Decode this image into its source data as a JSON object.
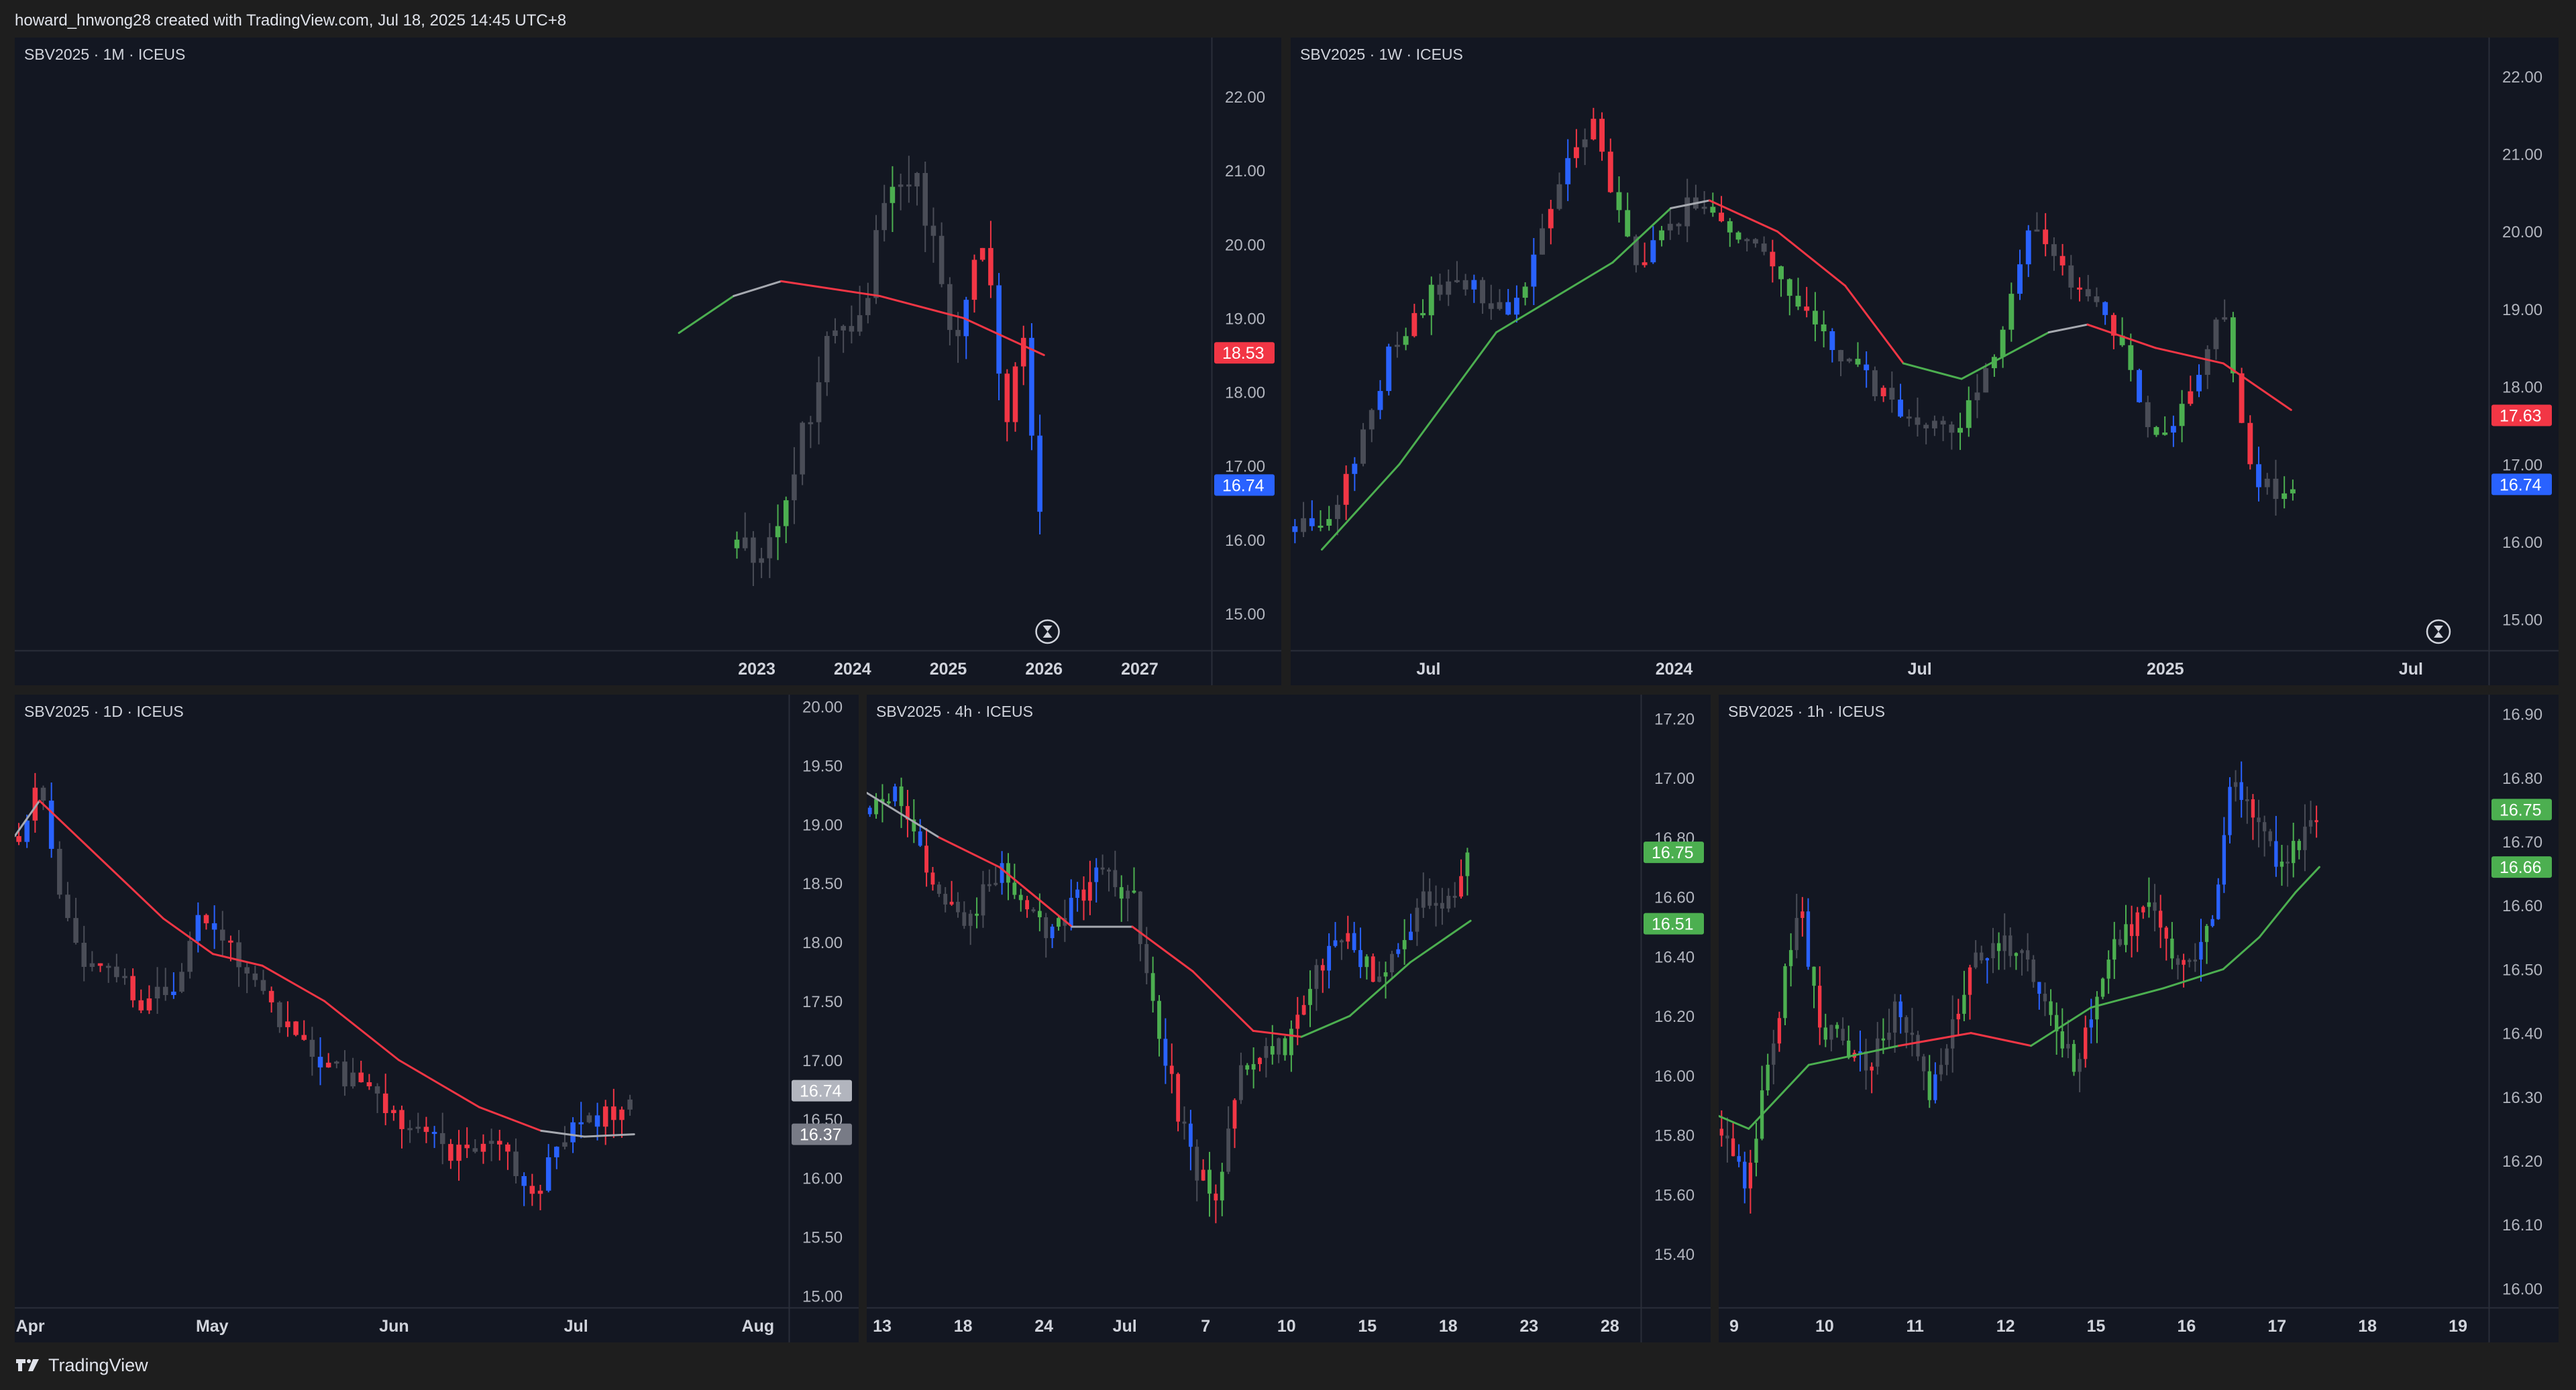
{
  "header": {
    "text": "howard_hnwong28 created with TradingView.com, Jul 18, 2025 14:45 UTC+8"
  },
  "footer": {
    "brand": "TradingView",
    "logo_icon": "tradingview-logo-icon"
  },
  "colors": {
    "background": "#131722",
    "frame": "#1e1e1e",
    "candle_up": "#4caf50",
    "candle_down": "#f23645",
    "candle_blue": "#2962ff",
    "candle_neutral": "#4a4d57",
    "ma_up": "#4caf50",
    "ma_down": "#f23645",
    "ma_flat": "#a6a9b0",
    "axis_text": "#b2b5be"
  },
  "chart_data": [
    {
      "type": "candlestick",
      "pane_title": "SBV2025 · 1M · ICEUS",
      "symbol": "SBV2025",
      "interval": "1M",
      "exchange": "ICEUS",
      "ylim": [
        14.5,
        22.8
      ],
      "y_ticks": [
        "22.00",
        "21.00",
        "20.00",
        "19.00",
        "18.00",
        "17.00",
        "16.00",
        "15.00"
      ],
      "x_ticks": [
        "2023",
        "2024",
        "2025",
        "2026",
        "2027"
      ],
      "price_labels": [
        {
          "value": 18.53,
          "text": "18.53",
          "color": "#f23645"
        },
        {
          "value": 16.74,
          "text": "16.74",
          "color": "#2962ff"
        }
      ],
      "moving_average": [
        {
          "x": 0,
          "y": 18.8,
          "trend": "up"
        },
        {
          "x": 0.15,
          "y": 19.3,
          "trend": "up"
        },
        {
          "x": 0.28,
          "y": 19.5,
          "trend": "flat"
        },
        {
          "x": 0.55,
          "y": 19.3,
          "trend": "down"
        },
        {
          "x": 0.78,
          "y": 19.0,
          "trend": "down"
        },
        {
          "x": 1,
          "y": 18.5,
          "trend": "down"
        }
      ],
      "ma_span": [
        0.555,
        0.86
      ],
      "candles_seed": 11,
      "candles_span": [
        0.6,
        0.86
      ],
      "candles_count": 38,
      "candles_path": [
        [
          0,
          16.0
        ],
        [
          0.08,
          15.8
        ],
        [
          0.18,
          16.8
        ],
        [
          0.3,
          18.7
        ],
        [
          0.42,
          19.2
        ],
        [
          0.5,
          21.0
        ],
        [
          0.6,
          20.8
        ],
        [
          0.72,
          18.6
        ],
        [
          0.82,
          20.3
        ],
        [
          0.88,
          17.3
        ],
        [
          0.94,
          19.0
        ],
        [
          1.0,
          16.3
        ]
      ],
      "candles_vol": 0.5,
      "candles_colors": "mixed-red-end",
      "hourglass_icon": "hourglass-icon"
    },
    {
      "type": "candlestick",
      "pane_title": "SBV2025 · 1W · ICEUS",
      "symbol": "SBV2025",
      "interval": "1W",
      "exchange": "ICEUS",
      "ylim": [
        14.6,
        22.5
      ],
      "y_ticks": [
        "22.00",
        "21.00",
        "20.00",
        "19.00",
        "18.00",
        "17.00",
        "16.00",
        "15.00"
      ],
      "x_ticks": [
        "Jul",
        "2024",
        "Jul",
        "2025",
        "Jul"
      ],
      "price_labels": [
        {
          "value": 17.63,
          "text": "17.63",
          "color": "#f23645"
        },
        {
          "value": 16.74,
          "text": "16.74",
          "color": "#2962ff"
        }
      ],
      "moving_average": [
        {
          "x": 0,
          "y": 15.9,
          "trend": "up"
        },
        {
          "x": 0.08,
          "y": 17.0,
          "trend": "up"
        },
        {
          "x": 0.18,
          "y": 18.7,
          "trend": "up"
        },
        {
          "x": 0.3,
          "y": 19.6,
          "trend": "up"
        },
        {
          "x": 0.36,
          "y": 20.3,
          "trend": "up"
        },
        {
          "x": 0.4,
          "y": 20.4,
          "trend": "flat"
        },
        {
          "x": 0.47,
          "y": 20.0,
          "trend": "down"
        },
        {
          "x": 0.54,
          "y": 19.3,
          "trend": "down"
        },
        {
          "x": 0.6,
          "y": 18.3,
          "trend": "down"
        },
        {
          "x": 0.66,
          "y": 18.1,
          "trend": "up"
        },
        {
          "x": 0.75,
          "y": 18.7,
          "trend": "up"
        },
        {
          "x": 0.79,
          "y": 18.8,
          "trend": "flat"
        },
        {
          "x": 0.86,
          "y": 18.5,
          "trend": "down"
        },
        {
          "x": 0.93,
          "y": 18.3,
          "trend": "down"
        },
        {
          "x": 1,
          "y": 17.7,
          "trend": "down"
        }
      ],
      "ma_span": [
        0.026,
        0.835
      ],
      "candles_seed": 23,
      "candles_span": [
        0.0,
        0.84
      ],
      "candles_count": 118,
      "candles_path": [
        [
          0,
          16.2
        ],
        [
          0.04,
          16.4
        ],
        [
          0.1,
          18.6
        ],
        [
          0.15,
          19.4
        ],
        [
          0.22,
          19.0
        ],
        [
          0.27,
          20.8
        ],
        [
          0.3,
          21.4
        ],
        [
          0.34,
          19.5
        ],
        [
          0.4,
          20.4
        ],
        [
          0.47,
          19.8
        ],
        [
          0.52,
          18.7
        ],
        [
          0.6,
          17.8
        ],
        [
          0.66,
          17.4
        ],
        [
          0.7,
          18.4
        ],
        [
          0.74,
          20.2
        ],
        [
          0.78,
          19.3
        ],
        [
          0.82,
          18.8
        ],
        [
          0.86,
          17.2
        ],
        [
          0.9,
          18.0
        ],
        [
          0.93,
          19.0
        ],
        [
          0.96,
          16.8
        ],
        [
          1.0,
          16.6
        ]
      ],
      "candles_vol": 0.32,
      "candles_colors": "mixed",
      "hourglass_icon": "hourglass-icon"
    },
    {
      "type": "candlestick",
      "pane_title": "SBV2025 · 1D · ICEUS",
      "symbol": "SBV2025",
      "interval": "1D",
      "exchange": "ICEUS",
      "ylim": [
        14.9,
        20.1
      ],
      "y_ticks": [
        "20.00",
        "19.50",
        "19.00",
        "18.50",
        "18.00",
        "17.50",
        "17.00",
        "16.50",
        "16.00",
        "15.50",
        "15.00"
      ],
      "x_ticks": [
        "Apr",
        "May",
        "Jun",
        "Jul",
        "Aug"
      ],
      "price_labels": [
        {
          "value": 16.74,
          "text": "16.74",
          "color": "#b2b5be"
        },
        {
          "value": 16.37,
          "text": "16.37",
          "color": "#787b86"
        }
      ],
      "moving_average": [
        {
          "x": 0,
          "y": 18.9,
          "trend": "up"
        },
        {
          "x": 0.04,
          "y": 19.2,
          "trend": "flat"
        },
        {
          "x": 0.12,
          "y": 18.8,
          "trend": "down"
        },
        {
          "x": 0.24,
          "y": 18.2,
          "trend": "down"
        },
        {
          "x": 0.32,
          "y": 17.9,
          "trend": "down"
        },
        {
          "x": 0.4,
          "y": 17.8,
          "trend": "down"
        },
        {
          "x": 0.5,
          "y": 17.5,
          "trend": "down"
        },
        {
          "x": 0.62,
          "y": 17.0,
          "trend": "down"
        },
        {
          "x": 0.75,
          "y": 16.6,
          "trend": "down"
        },
        {
          "x": 0.85,
          "y": 16.4,
          "trend": "down"
        },
        {
          "x": 0.92,
          "y": 16.35,
          "trend": "flat"
        },
        {
          "x": 1,
          "y": 16.37,
          "trend": "flat"
        }
      ],
      "ma_span": [
        0.0,
        0.8
      ],
      "candles_seed": 37,
      "candles_span": [
        0.0,
        0.8
      ],
      "candles_count": 76,
      "candles_path": [
        [
          0,
          18.9
        ],
        [
          0.03,
          19.4
        ],
        [
          0.07,
          18.4
        ],
        [
          0.1,
          17.9
        ],
        [
          0.15,
          17.8
        ],
        [
          0.2,
          17.5
        ],
        [
          0.25,
          17.6
        ],
        [
          0.3,
          18.3
        ],
        [
          0.35,
          17.9
        ],
        [
          0.45,
          17.2
        ],
        [
          0.55,
          16.8
        ],
        [
          0.65,
          16.4
        ],
        [
          0.72,
          16.2
        ],
        [
          0.78,
          16.4
        ],
        [
          0.84,
          15.8
        ],
        [
          0.88,
          16.3
        ],
        [
          0.95,
          16.5
        ],
        [
          1.0,
          16.6
        ]
      ],
      "candles_vol": 0.22,
      "candles_colors": "mostly-red",
      "hourglass_icon": ""
    },
    {
      "type": "candlestick",
      "pane_title": "SBV2025 · 4h · ICEUS",
      "symbol": "SBV2025",
      "interval": "4h",
      "exchange": "ICEUS",
      "ylim": [
        15.22,
        17.28
      ],
      "y_ticks": [
        "17.20",
        "17.00",
        "16.80",
        "16.60",
        "16.40",
        "16.20",
        "16.00",
        "15.80",
        "15.60",
        "15.40"
      ],
      "x_ticks": [
        "13",
        "18",
        "24",
        "Jul",
        "7",
        "10",
        "15",
        "18",
        "23",
        "28"
      ],
      "price_labels": [
        {
          "value": 16.75,
          "text": "16.75",
          "color": "#4caf50"
        },
        {
          "value": 16.51,
          "text": "16.51",
          "color": "#4caf50"
        }
      ],
      "moving_average": [
        {
          "x": 0,
          "y": 16.95,
          "trend": "down"
        },
        {
          "x": 0.12,
          "y": 16.8,
          "trend": "flat"
        },
        {
          "x": 0.22,
          "y": 16.7,
          "trend": "down"
        },
        {
          "x": 0.34,
          "y": 16.5,
          "trend": "down"
        },
        {
          "x": 0.44,
          "y": 16.5,
          "trend": "flat"
        },
        {
          "x": 0.54,
          "y": 16.35,
          "trend": "down"
        },
        {
          "x": 0.64,
          "y": 16.15,
          "trend": "down"
        },
        {
          "x": 0.72,
          "y": 16.13,
          "trend": "down"
        },
        {
          "x": 0.8,
          "y": 16.2,
          "trend": "up"
        },
        {
          "x": 0.9,
          "y": 16.38,
          "trend": "up"
        },
        {
          "x": 1,
          "y": 16.52,
          "trend": "up"
        }
      ],
      "ma_span": [
        0.0,
        0.78
      ],
      "candles_seed": 53,
      "candles_span": [
        0.0,
        0.78
      ],
      "candles_count": 96,
      "candles_path": [
        [
          0,
          16.9
        ],
        [
          0.05,
          16.95
        ],
        [
          0.1,
          16.7
        ],
        [
          0.16,
          16.5
        ],
        [
          0.22,
          16.7
        ],
        [
          0.3,
          16.45
        ],
        [
          0.38,
          16.7
        ],
        [
          0.44,
          16.6
        ],
        [
          0.5,
          16.0
        ],
        [
          0.54,
          15.7
        ],
        [
          0.58,
          15.6
        ],
        [
          0.62,
          16.0
        ],
        [
          0.7,
          16.1
        ],
        [
          0.78,
          16.5
        ],
        [
          0.86,
          16.3
        ],
        [
          0.92,
          16.6
        ],
        [
          0.96,
          16.55
        ],
        [
          1.0,
          16.75
        ]
      ],
      "candles_vol": 0.1,
      "candles_colors": "mixed",
      "hourglass_icon": ""
    },
    {
      "type": "candlestick",
      "pane_title": "SBV2025 · 1h · ICEUS",
      "symbol": "SBV2025",
      "interval": "1h",
      "exchange": "ICEUS",
      "ylim": [
        15.97,
        16.93
      ],
      "y_ticks": [
        "16.90",
        "16.80",
        "16.70",
        "16.60",
        "16.50",
        "16.40",
        "16.30",
        "16.20",
        "16.10",
        "16.00"
      ],
      "x_ticks": [
        "9",
        "10",
        "11",
        "12",
        "15",
        "16",
        "17",
        "18",
        "19"
      ],
      "price_labels": [
        {
          "value": 16.75,
          "text": "16.75",
          "color": "#4caf50"
        },
        {
          "value": 16.66,
          "text": "16.66",
          "color": "#4caf50"
        }
      ],
      "moving_average": [
        {
          "x": 0,
          "y": 16.27,
          "trend": "down"
        },
        {
          "x": 0.05,
          "y": 16.25,
          "trend": "up"
        },
        {
          "x": 0.15,
          "y": 16.35,
          "trend": "up"
        },
        {
          "x": 0.3,
          "y": 16.38,
          "trend": "up"
        },
        {
          "x": 0.42,
          "y": 16.4,
          "trend": "red"
        },
        {
          "x": 0.52,
          "y": 16.38,
          "trend": "red"
        },
        {
          "x": 0.62,
          "y": 16.44,
          "trend": "up"
        },
        {
          "x": 0.74,
          "y": 16.47,
          "trend": "up"
        },
        {
          "x": 0.84,
          "y": 16.5,
          "trend": "up"
        },
        {
          "x": 0.9,
          "y": 16.55,
          "trend": "up"
        },
        {
          "x": 0.96,
          "y": 16.62,
          "trend": "up"
        },
        {
          "x": 1,
          "y": 16.66,
          "trend": "up"
        }
      ],
      "ma_span": [
        0.0,
        0.78
      ],
      "candles_seed": 71,
      "candles_span": [
        0.0,
        0.78
      ],
      "candles_count": 104,
      "candles_path": [
        [
          0,
          16.25
        ],
        [
          0.04,
          16.15
        ],
        [
          0.08,
          16.35
        ],
        [
          0.13,
          16.6
        ],
        [
          0.17,
          16.4
        ],
        [
          0.25,
          16.35
        ],
        [
          0.3,
          16.45
        ],
        [
          0.35,
          16.3
        ],
        [
          0.42,
          16.5
        ],
        [
          0.48,
          16.55
        ],
        [
          0.52,
          16.5
        ],
        [
          0.56,
          16.4
        ],
        [
          0.6,
          16.35
        ],
        [
          0.66,
          16.55
        ],
        [
          0.72,
          16.6
        ],
        [
          0.76,
          16.5
        ],
        [
          0.82,
          16.55
        ],
        [
          0.86,
          16.8
        ],
        [
          0.9,
          16.75
        ],
        [
          0.94,
          16.65
        ],
        [
          1.0,
          16.75
        ]
      ],
      "candles_vol": 0.05,
      "candles_colors": "mixed",
      "hourglass_icon": ""
    }
  ]
}
